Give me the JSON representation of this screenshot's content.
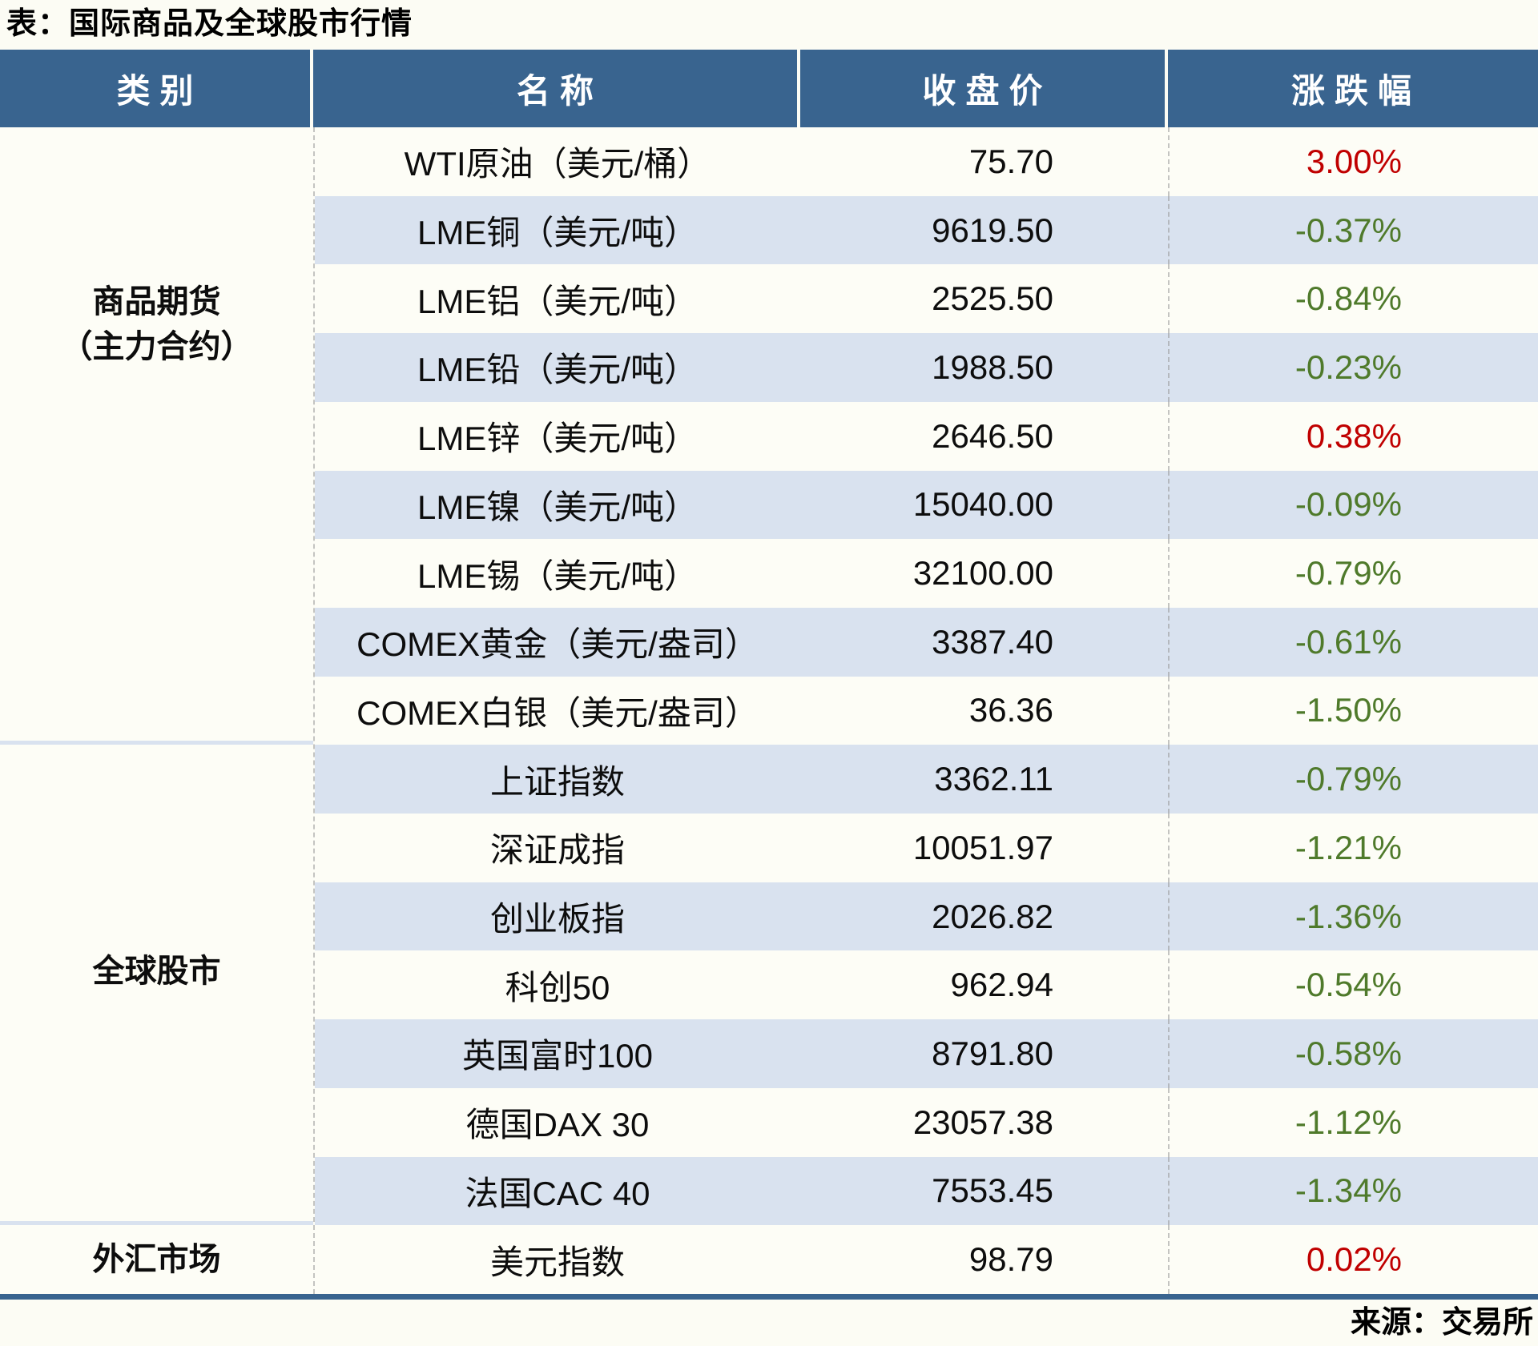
{
  "title": "表：国际商品及全球股市行情",
  "source": "来源：交易所",
  "header": {
    "category": "类别",
    "name": "名称",
    "close": "收盘价",
    "change": "涨跌幅"
  },
  "colors": {
    "header_bg": "#39648F",
    "row_stripe": "#D9E2EF",
    "row_plain": "#FDFDF6",
    "up_red": "#C00000",
    "down_green": "#4F7A2B",
    "bottom_border": "#39648F",
    "section_divider": "#D9E2EF"
  },
  "categories": [
    {
      "line1": "商品期货",
      "line2": "（主力合约）",
      "row_span": 9
    },
    {
      "line1": "全球股市",
      "line2": "",
      "row_span": 7
    },
    {
      "line1": "外汇市场",
      "line2": "",
      "row_span": 1
    }
  ],
  "rows": [
    {
      "name": "WTI原油（美元/桶）",
      "close": "75.70",
      "change": "3.00%",
      "direction": "up"
    },
    {
      "name": "LME铜（美元/吨）",
      "close": "9619.50",
      "change": "-0.37%",
      "direction": "down"
    },
    {
      "name": "LME铝（美元/吨）",
      "close": "2525.50",
      "change": "-0.84%",
      "direction": "down"
    },
    {
      "name": "LME铅（美元/吨）",
      "close": "1988.50",
      "change": "-0.23%",
      "direction": "down"
    },
    {
      "name": "LME锌（美元/吨）",
      "close": "2646.50",
      "change": "0.38%",
      "direction": "up"
    },
    {
      "name": "LME镍（美元/吨）",
      "close": "15040.00",
      "change": "-0.09%",
      "direction": "down"
    },
    {
      "name": "LME锡（美元/吨）",
      "close": "32100.00",
      "change": "-0.79%",
      "direction": "down"
    },
    {
      "name": "COMEX黄金（美元/盎司）",
      "close": "3387.40",
      "change": "-0.61%",
      "direction": "down"
    },
    {
      "name": "COMEX白银（美元/盎司）",
      "close": "36.36",
      "change": "-1.50%",
      "direction": "down"
    },
    {
      "name": "上证指数",
      "close": "3362.11",
      "change": "-0.79%",
      "direction": "down"
    },
    {
      "name": "深证成指",
      "close": "10051.97",
      "change": "-1.21%",
      "direction": "down"
    },
    {
      "name": "创业板指",
      "close": "2026.82",
      "change": "-1.36%",
      "direction": "down"
    },
    {
      "name": "科创50",
      "close": "962.94",
      "change": "-0.54%",
      "direction": "down"
    },
    {
      "name": "英国富时100",
      "close": "8791.80",
      "change": "-0.58%",
      "direction": "down"
    },
    {
      "name": "德国DAX 30",
      "close": "23057.38",
      "change": "-1.12%",
      "direction": "down"
    },
    {
      "name": "法国CAC 40",
      "close": "7553.45",
      "change": "-1.34%",
      "direction": "down"
    },
    {
      "name": "美元指数",
      "close": "98.79",
      "change": "0.02%",
      "direction": "up"
    }
  ]
}
